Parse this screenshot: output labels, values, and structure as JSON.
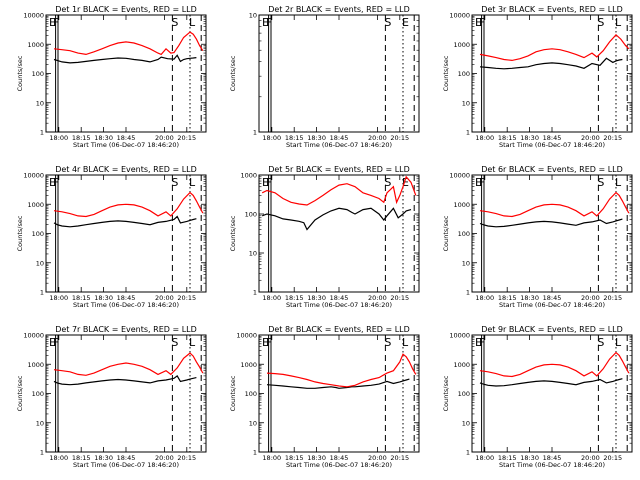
{
  "figure": {
    "xlabel": "Start Time (06-Dec-07 18:46:20)",
    "ylabel": "Counts/sec"
  },
  "chart_data": [
    {
      "type": "line",
      "title": "Det 1r BLACK = Events, RED = LLD",
      "x_tick_labels": [
        "18:00",
        "18:15",
        "18:30",
        "18:45",
        "20:00",
        "20:15"
      ],
      "y_tick_labels": [
        "1",
        "10",
        "100",
        "1000",
        "10000"
      ],
      "ylim": [
        1,
        10000
      ],
      "y_scale": "log",
      "markers": [
        "E",
        "F",
        "S",
        "L"
      ],
      "series": [
        {
          "color": "#000000",
          "x": [
            0.05,
            0.07,
            0.1,
            0.15,
            0.2,
            0.25,
            0.3,
            0.35,
            0.4,
            0.45,
            0.5,
            0.55,
            0.6,
            0.65,
            0.7,
            0.72,
            0.76,
            0.8,
            0.82,
            0.84,
            0.86,
            0.88,
            0.9,
            0.92,
            0.94
          ],
          "y": [
            300,
            280,
            250,
            230,
            240,
            260,
            280,
            300,
            320,
            340,
            330,
            300,
            280,
            250,
            300,
            360,
            320,
            310,
            420,
            260,
            300,
            320,
            330,
            340,
            350
          ]
        },
        {
          "color": "#ff0000",
          "x": [
            0.05,
            0.1,
            0.15,
            0.2,
            0.25,
            0.3,
            0.35,
            0.4,
            0.45,
            0.5,
            0.55,
            0.6,
            0.65,
            0.7,
            0.72,
            0.75,
            0.78,
            0.8,
            0.83,
            0.86,
            0.9,
            0.92,
            0.94,
            0.96,
            0.98
          ],
          "y": [
            700,
            650,
            600,
            500,
            450,
            550,
            700,
            900,
            1100,
            1200,
            1100,
            900,
            700,
            500,
            450,
            700,
            500,
            520,
            900,
            1700,
            2600,
            2200,
            1500,
            900,
            600
          ]
        }
      ]
    },
    {
      "type": "line",
      "title": "Det 2r BLACK = Events, RED = LLD",
      "x_tick_labels": [
        "18:00",
        "18:15",
        "18:30",
        "18:45",
        "20:00",
        "20:15"
      ],
      "y_tick_labels": [
        "1",
        "10"
      ],
      "ylim": [
        1,
        10
      ],
      "y_scale": "log",
      "markers": [
        "E",
        "F",
        "S",
        "E"
      ],
      "series": []
    },
    {
      "type": "line",
      "title": "Det 3r BLACK = Events, RED = LLD",
      "x_tick_labels": [
        "18:00",
        "18:15",
        "18:30",
        "18:45",
        "20:00",
        "20:15"
      ],
      "y_tick_labels": [
        "1",
        "10",
        "100",
        "1000",
        "10000"
      ],
      "ylim": [
        1,
        10000
      ],
      "y_scale": "log",
      "markers": [
        "E",
        "F",
        "S",
        "L"
      ],
      "series": [
        {
          "color": "#000000",
          "x": [
            0.05,
            0.1,
            0.15,
            0.2,
            0.25,
            0.3,
            0.35,
            0.4,
            0.45,
            0.5,
            0.55,
            0.6,
            0.65,
            0.7,
            0.75,
            0.8,
            0.84,
            0.88,
            0.9,
            0.92,
            0.94
          ],
          "y": [
            170,
            160,
            150,
            145,
            150,
            160,
            170,
            200,
            220,
            230,
            220,
            200,
            180,
            150,
            220,
            190,
            330,
            240,
            270,
            290,
            300
          ]
        },
        {
          "color": "#ff0000",
          "x": [
            0.05,
            0.1,
            0.15,
            0.2,
            0.25,
            0.3,
            0.35,
            0.4,
            0.45,
            0.5,
            0.55,
            0.6,
            0.65,
            0.7,
            0.75,
            0.78,
            0.82,
            0.86,
            0.9,
            0.93,
            0.96,
            0.98
          ],
          "y": [
            450,
            400,
            350,
            300,
            280,
            320,
            400,
            550,
            650,
            700,
            650,
            550,
            450,
            350,
            500,
            370,
            600,
            1200,
            2100,
            1500,
            900,
            700
          ]
        }
      ]
    },
    {
      "type": "line",
      "title": "Det 4r BLACK = Events, RED = LLD",
      "x_tick_labels": [
        "18:00",
        "18:15",
        "18:30",
        "18:45",
        "20:00",
        "20:15"
      ],
      "y_tick_labels": [
        "1",
        "10",
        "100",
        "1000",
        "10000"
      ],
      "ylim": [
        1,
        10000
      ],
      "y_scale": "log",
      "markers": [
        "E",
        "F",
        "S",
        "L"
      ],
      "series": [
        {
          "color": "#000000",
          "x": [
            0.05,
            0.07,
            0.1,
            0.15,
            0.2,
            0.25,
            0.3,
            0.35,
            0.4,
            0.45,
            0.5,
            0.55,
            0.6,
            0.65,
            0.7,
            0.75,
            0.8,
            0.82,
            0.84,
            0.88,
            0.9,
            0.92,
            0.94
          ],
          "y": [
            230,
            200,
            180,
            170,
            180,
            200,
            220,
            240,
            260,
            270,
            260,
            240,
            220,
            200,
            240,
            260,
            300,
            380,
            230,
            260,
            280,
            300,
            320
          ]
        },
        {
          "color": "#ff0000",
          "x": [
            0.05,
            0.1,
            0.15,
            0.2,
            0.25,
            0.3,
            0.35,
            0.4,
            0.45,
            0.5,
            0.55,
            0.6,
            0.65,
            0.7,
            0.75,
            0.78,
            0.82,
            0.86,
            0.9,
            0.92,
            0.94,
            0.96,
            0.98
          ],
          "y": [
            600,
            550,
            480,
            400,
            380,
            450,
            600,
            800,
            950,
            1000,
            950,
            800,
            600,
            400,
            550,
            400,
            700,
            1500,
            2500,
            2000,
            1300,
            800,
            500
          ]
        }
      ]
    },
    {
      "type": "line",
      "title": "Det 5r BLACK = Events, RED = LLD",
      "x_tick_labels": [
        "18:00",
        "18:15",
        "18:30",
        "18:45",
        "20:00",
        "20:15"
      ],
      "y_tick_labels": [
        "1",
        "10",
        "100",
        "1000"
      ],
      "ylim": [
        1,
        1000
      ],
      "y_scale": "log",
      "markers": [
        "E",
        "F",
        "S",
        "E"
      ],
      "series": [
        {
          "color": "#000000",
          "x": [
            0.02,
            0.05,
            0.1,
            0.15,
            0.2,
            0.25,
            0.28,
            0.3,
            0.35,
            0.4,
            0.45,
            0.5,
            0.55,
            0.58,
            0.6,
            0.65,
            0.7,
            0.75,
            0.78,
            0.8,
            0.84,
            0.87,
            0.9,
            0.92,
            0.95
          ],
          "y": [
            90,
            100,
            90,
            75,
            70,
            65,
            60,
            40,
            70,
            95,
            120,
            140,
            130,
            110,
            100,
            130,
            140,
            100,
            70,
            90,
            140,
            80,
            100,
            120,
            130
          ]
        },
        {
          "color": "#ff0000",
          "x": [
            0.02,
            0.05,
            0.1,
            0.15,
            0.2,
            0.25,
            0.3,
            0.35,
            0.4,
            0.45,
            0.5,
            0.55,
            0.6,
            0.65,
            0.7,
            0.75,
            0.78,
            0.8,
            0.84,
            0.86,
            0.88,
            0.9,
            0.92,
            0.95,
            0.98
          ],
          "y": [
            350,
            400,
            350,
            250,
            200,
            180,
            170,
            220,
            300,
            420,
            550,
            600,
            500,
            350,
            300,
            250,
            200,
            350,
            500,
            200,
            300,
            500,
            900,
            650,
            300
          ]
        }
      ]
    },
    {
      "type": "line",
      "title": "Det 6r BLACK = Events, RED = LLD",
      "x_tick_labels": [
        "18:00",
        "18:15",
        "18:30",
        "18:45",
        "20:00",
        "20:15"
      ],
      "y_tick_labels": [
        "1",
        "10",
        "100",
        "1000",
        "10000"
      ],
      "ylim": [
        1,
        10000
      ],
      "y_scale": "log",
      "markers": [
        "E",
        "F",
        "S",
        "L"
      ],
      "series": [
        {
          "color": "#000000",
          "x": [
            0.05,
            0.07,
            0.1,
            0.15,
            0.2,
            0.25,
            0.3,
            0.35,
            0.4,
            0.45,
            0.5,
            0.55,
            0.6,
            0.65,
            0.7,
            0.75,
            0.8,
            0.84,
            0.88,
            0.9,
            0.92,
            0.94
          ],
          "y": [
            220,
            200,
            180,
            170,
            175,
            190,
            210,
            230,
            250,
            260,
            250,
            230,
            210,
            190,
            230,
            250,
            290,
            220,
            250,
            270,
            290,
            310
          ]
        },
        {
          "color": "#ff0000",
          "x": [
            0.05,
            0.1,
            0.15,
            0.2,
            0.25,
            0.3,
            0.35,
            0.4,
            0.45,
            0.5,
            0.55,
            0.6,
            0.65,
            0.7,
            0.75,
            0.78,
            0.82,
            0.86,
            0.9,
            0.92,
            0.94,
            0.96,
            0.98
          ],
          "y": [
            600,
            550,
            480,
            400,
            380,
            450,
            600,
            800,
            950,
            1000,
            950,
            800,
            600,
            400,
            550,
            400,
            700,
            1500,
            2500,
            2000,
            1300,
            800,
            500
          ]
        }
      ]
    },
    {
      "type": "line",
      "title": "Det 7r BLACK = Events, RED = LLD",
      "x_tick_labels": [
        "18:00",
        "18:15",
        "18:30",
        "18:45",
        "20:00",
        "20:15"
      ],
      "y_tick_labels": [
        "1",
        "10",
        "100",
        "1000",
        "10000"
      ],
      "ylim": [
        1,
        10000
      ],
      "y_scale": "log",
      "markers": [
        "E",
        "F",
        "S",
        "L"
      ],
      "series": [
        {
          "color": "#000000",
          "x": [
            0.05,
            0.07,
            0.1,
            0.15,
            0.2,
            0.25,
            0.3,
            0.35,
            0.4,
            0.45,
            0.5,
            0.55,
            0.6,
            0.65,
            0.7,
            0.75,
            0.8,
            0.82,
            0.84,
            0.88,
            0.9,
            0.92,
            0.94
          ],
          "y": [
            260,
            230,
            210,
            200,
            210,
            230,
            250,
            270,
            290,
            300,
            290,
            270,
            250,
            230,
            270,
            290,
            330,
            400,
            260,
            290,
            310,
            330,
            350
          ]
        },
        {
          "color": "#ff0000",
          "x": [
            0.05,
            0.1,
            0.15,
            0.2,
            0.25,
            0.3,
            0.35,
            0.4,
            0.45,
            0.5,
            0.55,
            0.6,
            0.65,
            0.7,
            0.75,
            0.78,
            0.82,
            0.86,
            0.9,
            0.92,
            0.94,
            0.96,
            0.98
          ],
          "y": [
            650,
            600,
            550,
            450,
            420,
            500,
            650,
            850,
            1000,
            1100,
            1000,
            850,
            650,
            450,
            600,
            450,
            750,
            1600,
            2400,
            1900,
            1200,
            800,
            500
          ]
        }
      ]
    },
    {
      "type": "line",
      "title": "Det 8r BLACK = Events, RED = LLD",
      "x_tick_labels": [
        "18:00",
        "18:15",
        "18:30",
        "18:45",
        "20:00",
        "20:15"
      ],
      "y_tick_labels": [
        "1",
        "10",
        "100",
        "1000",
        "10000"
      ],
      "ylim": [
        1,
        10000
      ],
      "y_scale": "log",
      "markers": [
        "E",
        "F",
        "S",
        "L"
      ],
      "series": [
        {
          "color": "#000000",
          "x": [
            0.05,
            0.1,
            0.15,
            0.2,
            0.25,
            0.3,
            0.35,
            0.4,
            0.45,
            0.48,
            0.5,
            0.55,
            0.58,
            0.6,
            0.65,
            0.7,
            0.75,
            0.8,
            0.84,
            0.88,
            0.9,
            0.92,
            0.94
          ],
          "y": [
            200,
            190,
            180,
            170,
            160,
            150,
            150,
            160,
            170,
            160,
            150,
            160,
            170,
            170,
            180,
            190,
            210,
            260,
            220,
            250,
            270,
            290,
            310
          ]
        },
        {
          "color": "#ff0000",
          "x": [
            0.05,
            0.1,
            0.15,
            0.2,
            0.25,
            0.3,
            0.35,
            0.4,
            0.45,
            0.5,
            0.55,
            0.6,
            0.65,
            0.7,
            0.75,
            0.8,
            0.84,
            0.88,
            0.9,
            0.92,
            0.94,
            0.96,
            0.98
          ],
          "y": [
            500,
            480,
            450,
            400,
            350,
            300,
            250,
            220,
            200,
            180,
            170,
            190,
            250,
            300,
            350,
            500,
            600,
            1200,
            2200,
            1800,
            1200,
            700,
            450
          ]
        }
      ]
    },
    {
      "type": "line",
      "title": "Det 9r BLACK = Events, RED = LLD",
      "x_tick_labels": [
        "18:00",
        "18:15",
        "18:30",
        "18:45",
        "20:00",
        "20:15"
      ],
      "y_tick_labels": [
        "1",
        "10",
        "100",
        "1000",
        "10000"
      ],
      "ylim": [
        1,
        10000
      ],
      "y_scale": "log",
      "markers": [
        "E",
        "F",
        "S",
        "L"
      ],
      "series": [
        {
          "color": "#000000",
          "x": [
            0.05,
            0.07,
            0.1,
            0.15,
            0.2,
            0.25,
            0.3,
            0.35,
            0.4,
            0.45,
            0.5,
            0.55,
            0.6,
            0.65,
            0.7,
            0.75,
            0.8,
            0.84,
            0.88,
            0.9,
            0.92,
            0.94
          ],
          "y": [
            230,
            210,
            190,
            180,
            185,
            200,
            220,
            240,
            260,
            270,
            260,
            240,
            220,
            200,
            240,
            260,
            300,
            230,
            260,
            280,
            300,
            320
          ]
        },
        {
          "color": "#ff0000",
          "x": [
            0.05,
            0.1,
            0.15,
            0.2,
            0.25,
            0.3,
            0.35,
            0.4,
            0.45,
            0.5,
            0.55,
            0.6,
            0.65,
            0.7,
            0.75,
            0.78,
            0.82,
            0.86,
            0.9,
            0.92,
            0.94,
            0.96,
            0.98
          ],
          "y": [
            600,
            550,
            480,
            400,
            380,
            450,
            600,
            800,
            950,
            1000,
            950,
            800,
            600,
            400,
            550,
            400,
            700,
            1500,
            2500,
            2000,
            1300,
            800,
            500
          ]
        }
      ]
    }
  ]
}
